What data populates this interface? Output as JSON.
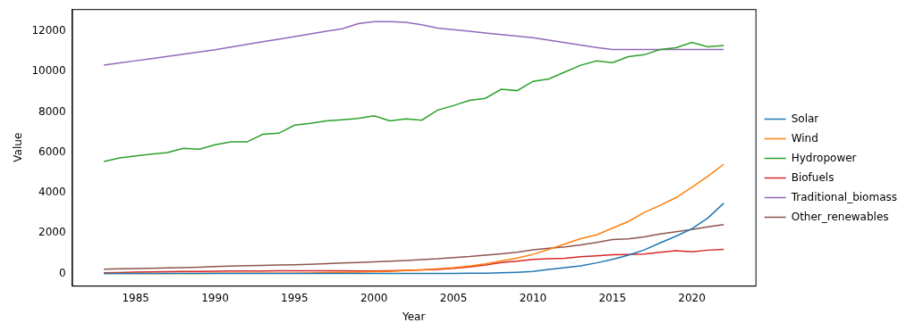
{
  "chart_data": {
    "type": "line",
    "x_label": "Year",
    "y_label": "Value",
    "x": [
      1983,
      1984,
      1985,
      1986,
      1987,
      1988,
      1989,
      1990,
      1991,
      1992,
      1993,
      1994,
      1995,
      1996,
      1997,
      1998,
      1999,
      2000,
      2001,
      2002,
      2003,
      2004,
      2005,
      2006,
      2007,
      2008,
      2009,
      2010,
      2011,
      2012,
      2013,
      2014,
      2015,
      2016,
      2017,
      2018,
      2019,
      2020,
      2021,
      2022
    ],
    "series": [
      {
        "name": "Solar",
        "color": "#1f77b4",
        "values": [
          0,
          0,
          0,
          0,
          0,
          0,
          0,
          0,
          0,
          1,
          1,
          1,
          1,
          1,
          1,
          1,
          1,
          2,
          2,
          3,
          4,
          6,
          10,
          15,
          20,
          35,
          60,
          100,
          200,
          290,
          380,
          530,
          700,
          910,
          1170,
          1520,
          1850,
          2220,
          2750,
          3480
        ]
      },
      {
        "name": "Wind",
        "color": "#ff7f0e",
        "values": [
          5,
          5,
          6,
          7,
          8,
          9,
          10,
          12,
          14,
          15,
          17,
          19,
          20,
          30,
          45,
          60,
          75,
          90,
          110,
          150,
          180,
          240,
          290,
          370,
          480,
          620,
          770,
          950,
          1200,
          1460,
          1730,
          1920,
          2250,
          2580,
          3030,
          3380,
          3760,
          4280,
          4820,
          5420
        ]
      },
      {
        "name": "Hydropower",
        "color": "#2ca02c",
        "values": [
          5550,
          5730,
          5830,
          5920,
          5990,
          6200,
          6160,
          6380,
          6520,
          6520,
          6900,
          6950,
          7350,
          7440,
          7560,
          7620,
          7680,
          7820,
          7560,
          7660,
          7600,
          8100,
          8320,
          8580,
          8680,
          9130,
          9060,
          9520,
          9640,
          9980,
          10320,
          10530,
          10450,
          10740,
          10840,
          11100,
          11190,
          11450,
          11230,
          11300
        ]
      },
      {
        "name": "Biofuels",
        "color": "#d62728",
        "values": [
          40,
          55,
          70,
          80,
          90,
          100,
          110,
          120,
          125,
          128,
          130,
          135,
          140,
          140,
          138,
          135,
          132,
          130,
          140,
          160,
          180,
          200,
          260,
          330,
          420,
          550,
          610,
          700,
          730,
          760,
          830,
          880,
          930,
          950,
          970,
          1050,
          1130,
          1080,
          1160,
          1200
        ]
      },
      {
        "name": "Traditional_biomass",
        "color": "#9467bd",
        "values": [
          10320,
          10430,
          10540,
          10650,
          10760,
          10870,
          10980,
          11090,
          11220,
          11350,
          11480,
          11610,
          11740,
          11870,
          12000,
          12130,
          12380,
          12480,
          12480,
          12450,
          12320,
          12160,
          12080,
          12000,
          11920,
          11840,
          11760,
          11680,
          11560,
          11440,
          11320,
          11200,
          11100,
          11100,
          11100,
          11100,
          11100,
          11100,
          11100,
          11100
        ]
      },
      {
        "name": "Other_renewables",
        "color": "#8c564b",
        "values": [
          220,
          240,
          250,
          265,
          280,
          295,
          320,
          350,
          370,
          390,
          405,
          420,
          440,
          460,
          490,
          520,
          550,
          580,
          610,
          650,
          690,
          730,
          790,
          840,
          910,
          980,
          1060,
          1180,
          1250,
          1320,
          1420,
          1540,
          1680,
          1720,
          1820,
          1960,
          2070,
          2180,
          2310,
          2420
        ]
      }
    ],
    "xlim": [
      1981,
      2024
    ],
    "xticks": [
      1985,
      1990,
      1995,
      2000,
      2005,
      2010,
      2015,
      2020
    ],
    "ylim": [
      -600,
      13100
    ],
    "yticks": [
      0,
      2000,
      4000,
      6000,
      8000,
      10000,
      12000
    ],
    "grid": false,
    "legend": "right"
  }
}
